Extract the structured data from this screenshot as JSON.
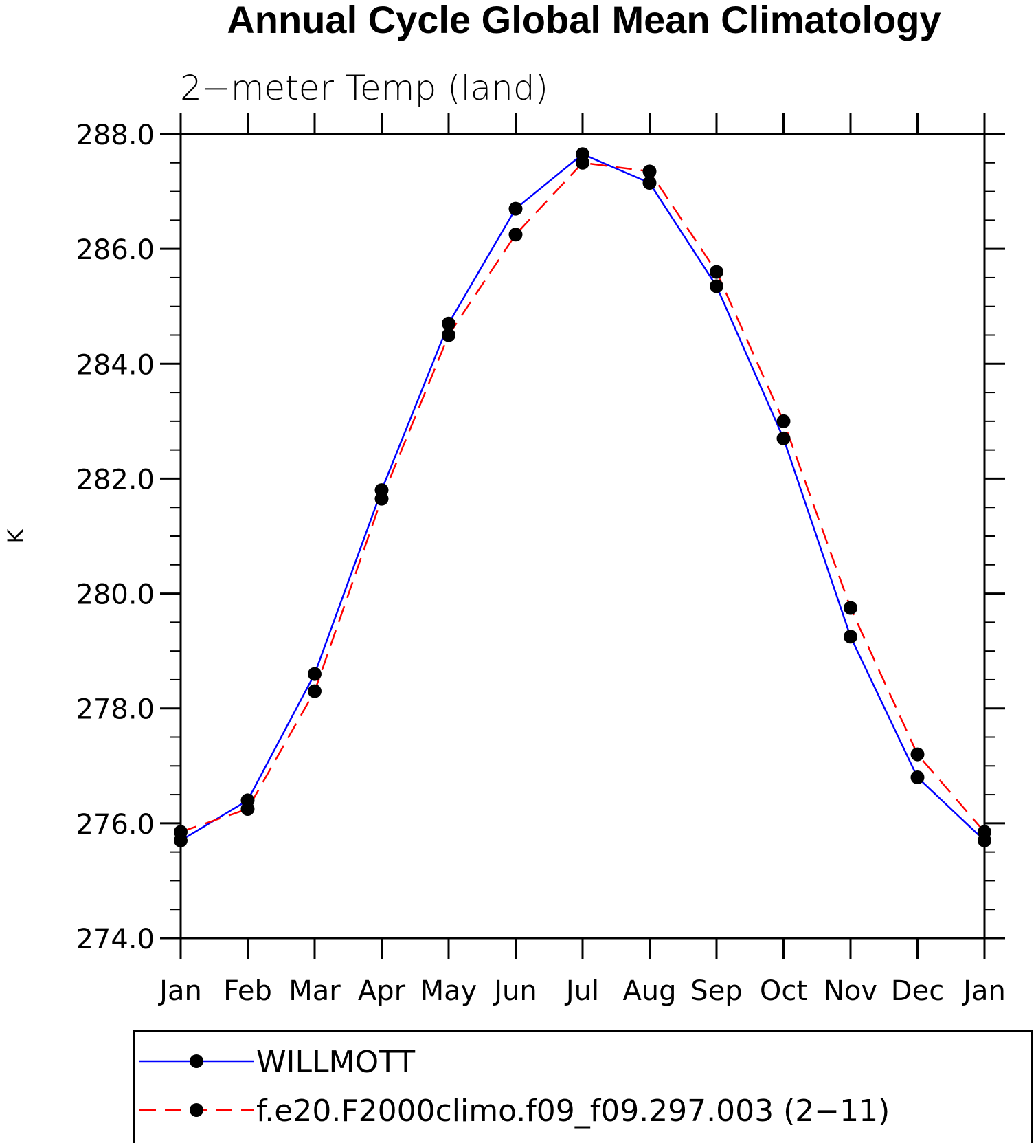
{
  "chart_data": {
    "type": "line",
    "title": "Annual Cycle Global Mean Climatology",
    "subtitle": "2−meter Temp (land)",
    "ylabel": "K",
    "xlabel": "",
    "categories": [
      "Jan",
      "Feb",
      "Mar",
      "Apr",
      "May",
      "Jun",
      "Jul",
      "Aug",
      "Sep",
      "Oct",
      "Nov",
      "Dec",
      "Jan"
    ],
    "ylim": [
      274.0,
      288.0
    ],
    "yticks": [
      "274.0",
      "276.0",
      "278.0",
      "280.0",
      "282.0",
      "284.0",
      "286.0",
      "288.0"
    ],
    "grid": false,
    "legend_position": "bottom",
    "series": [
      {
        "name": "WILLMOTT",
        "color": "#0000ff",
        "style": "solid",
        "marker": "filled-circle",
        "values": [
          275.7,
          276.4,
          278.6,
          281.8,
          284.7,
          286.7,
          287.65,
          287.15,
          285.35,
          282.7,
          279.25,
          276.8,
          275.7
        ]
      },
      {
        "name": "f.e20.F2000climo.f09_f09.297.003 (2−11)",
        "color": "#ff0000",
        "style": "dashed",
        "marker": "filled-circle",
        "values": [
          275.85,
          276.25,
          278.3,
          281.65,
          284.5,
          286.25,
          287.5,
          287.35,
          285.6,
          283.0,
          279.75,
          277.2,
          275.85
        ]
      }
    ]
  }
}
